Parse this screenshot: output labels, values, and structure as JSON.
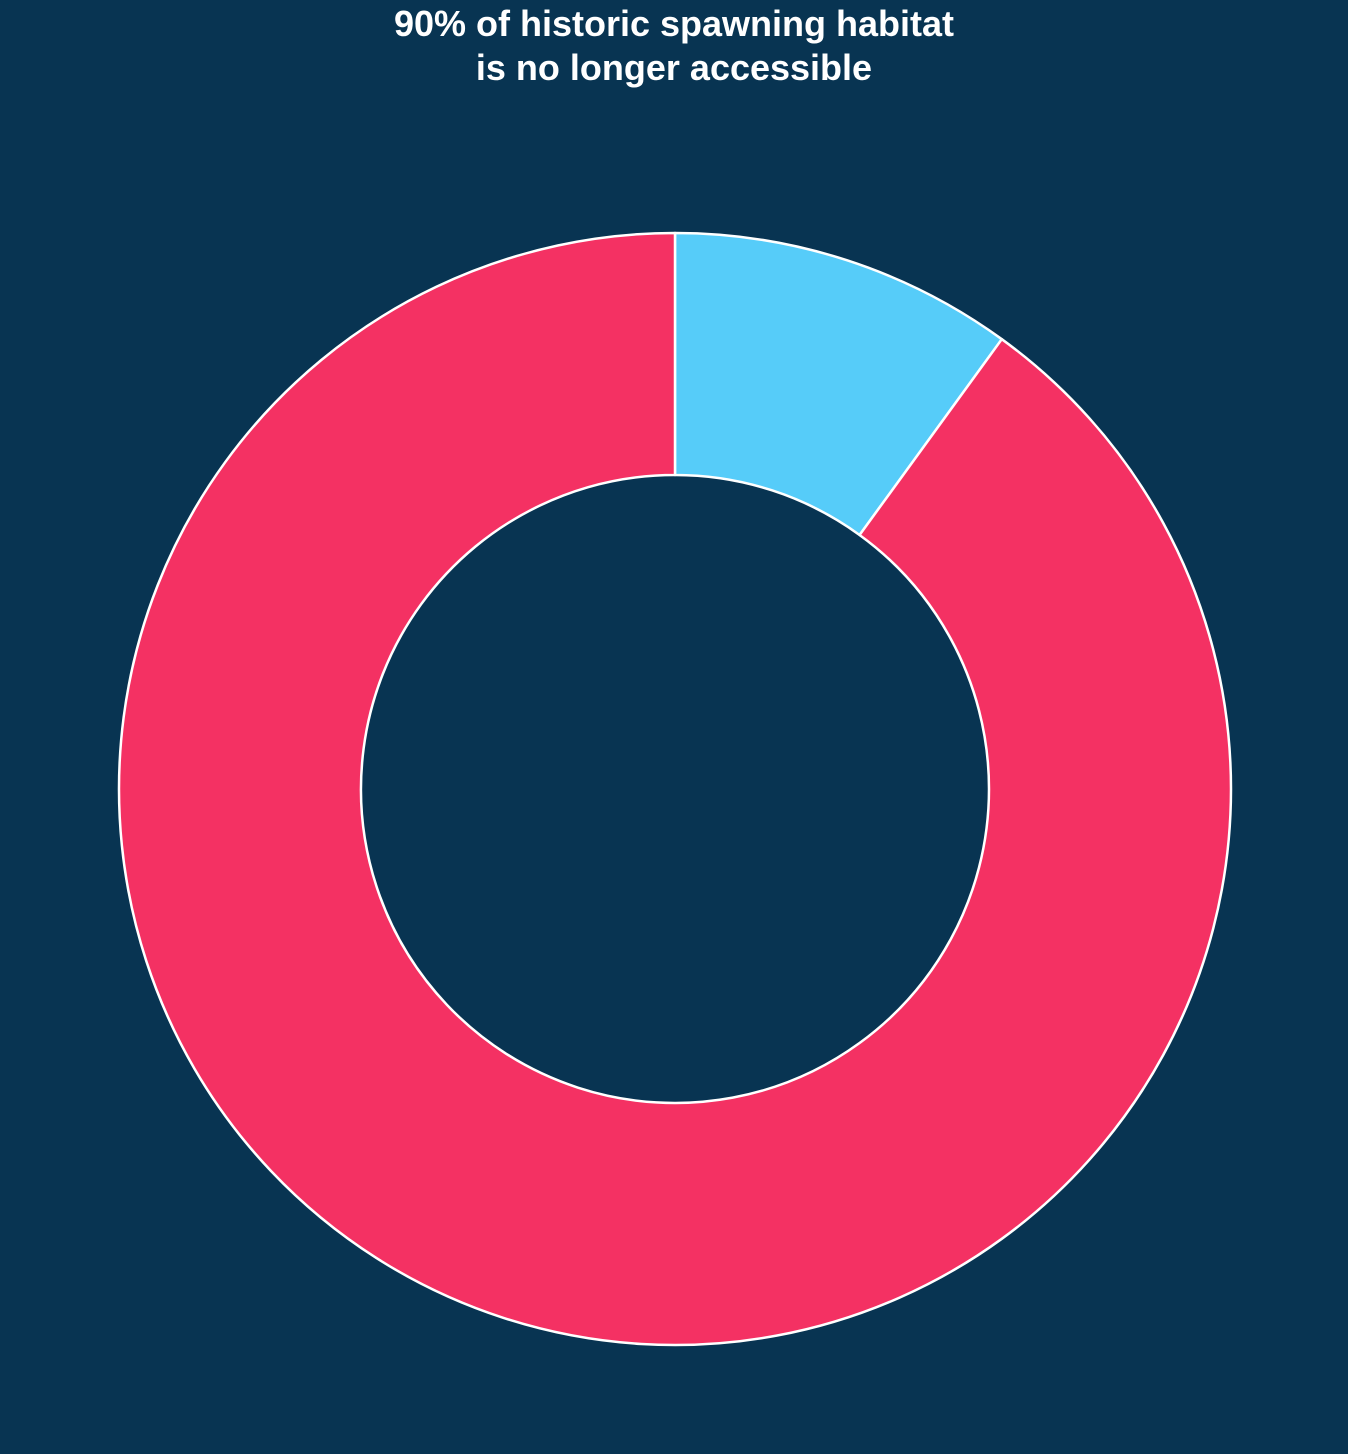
{
  "chart_data": {
    "type": "pie",
    "title": [
      "90% of historic spawning habitat",
      "is no longer accessible"
    ],
    "donut": true,
    "start_angle": "top",
    "direction": "clockwise",
    "slices": [
      {
        "value": 10,
        "color": "#56CCF9"
      },
      {
        "value": 90,
        "color": "#F43163"
      }
    ],
    "edge_color": "#ffffff"
  },
  "background": "#083452"
}
